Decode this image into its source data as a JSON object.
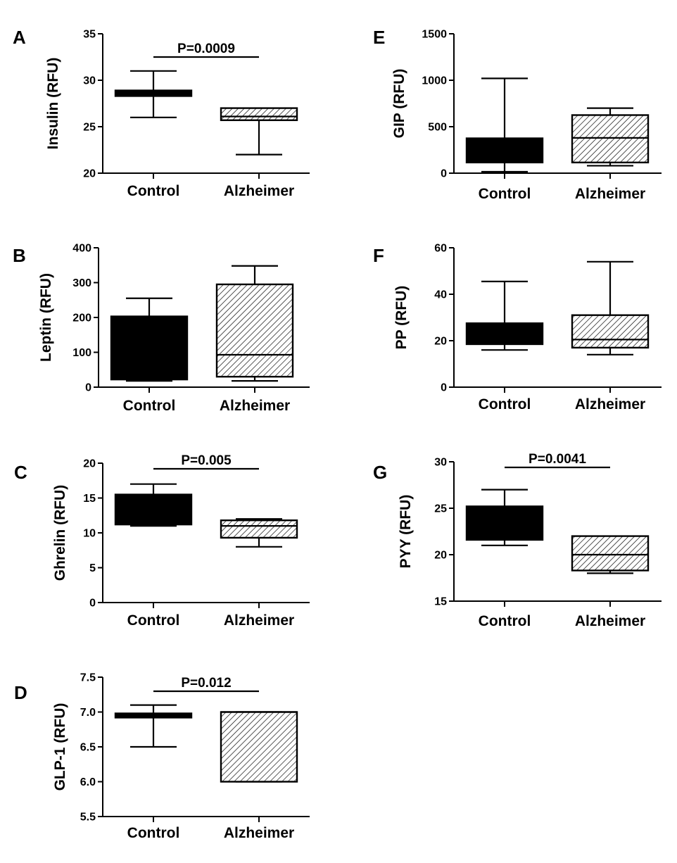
{
  "colors": {
    "ink": "#000000",
    "control_fill": "#000000",
    "alzheimer_fill": "hatched"
  },
  "chart_data": [
    {
      "type": "box",
      "panel": "A",
      "ylabel": "Insulin (RFU)",
      "ylim": [
        20,
        35
      ],
      "yticks": [
        20,
        25,
        30,
        35
      ],
      "ytick_labels": [
        "20",
        "25",
        "30",
        "35"
      ],
      "categories": [
        "Control",
        "Alzheimer"
      ],
      "pvalue": "P=0.0009",
      "boxes": [
        {
          "name": "Control",
          "min": 26,
          "q1": 28.3,
          "median": 28.6,
          "q3": 28.9,
          "max": 31
        },
        {
          "name": "Alzheimer",
          "min": 22,
          "q1": 25.7,
          "median": 26.1,
          "q3": 27,
          "max": 27
        }
      ]
    },
    {
      "type": "box",
      "panel": "B",
      "ylabel": "Leptin (RFU)",
      "ylim": [
        0,
        400
      ],
      "yticks": [
        0,
        100,
        200,
        300,
        400
      ],
      "ytick_labels": [
        "0",
        "100",
        "200",
        "300",
        "400"
      ],
      "categories": [
        "Control",
        "Alzheimer"
      ],
      "pvalue": "",
      "boxes": [
        {
          "name": "Control",
          "min": 18,
          "q1": 22,
          "median": 110,
          "q3": 203,
          "max": 255
        },
        {
          "name": "Alzheimer",
          "min": 18,
          "q1": 30,
          "median": 93,
          "q3": 295,
          "max": 348
        }
      ]
    },
    {
      "type": "box",
      "panel": "C",
      "ylabel": "Ghrelin (RFU)",
      "ylim": [
        0,
        20
      ],
      "yticks": [
        0,
        5,
        10,
        15,
        20
      ],
      "ytick_labels": [
        "0",
        "5",
        "10",
        "15",
        "20"
      ],
      "categories": [
        "Control",
        "Alzheimer"
      ],
      "pvalue": "P=0.005",
      "boxes": [
        {
          "name": "Control",
          "min": 11,
          "q1": 11.2,
          "median": 13,
          "q3": 15.5,
          "max": 17
        },
        {
          "name": "Alzheimer",
          "min": 8,
          "q1": 9.3,
          "median": 11,
          "q3": 11.8,
          "max": 12
        }
      ]
    },
    {
      "type": "box",
      "panel": "D",
      "ylabel": "GLP-1 (RFU)",
      "ylim": [
        5.5,
        7.5
      ],
      "yticks": [
        5.5,
        6.0,
        6.5,
        7.0,
        7.5
      ],
      "ytick_labels": [
        "5.5",
        "6.0",
        "6.5",
        "7.0",
        "7.5"
      ],
      "categories": [
        "Control",
        "Alzheimer"
      ],
      "pvalue": "P=0.012",
      "boxes": [
        {
          "name": "Control",
          "min": 6.5,
          "q1": 6.92,
          "median": 6.95,
          "q3": 6.98,
          "max": 7.1
        },
        {
          "name": "Alzheimer",
          "min": 6.0,
          "q1": 6.0,
          "median": 7.0,
          "q3": 7.0,
          "max": 7.0
        }
      ]
    },
    {
      "type": "box",
      "panel": "E",
      "ylabel": "GIP (RFU)",
      "ylim": [
        0,
        1500
      ],
      "yticks": [
        0,
        500,
        1000,
        1500
      ],
      "ytick_labels": [
        "0",
        "500",
        "1000",
        "1500"
      ],
      "categories": [
        "Control",
        "Alzheimer"
      ],
      "pvalue": "",
      "boxes": [
        {
          "name": "Control",
          "min": 15,
          "q1": 115,
          "median": 250,
          "q3": 375,
          "max": 1020
        },
        {
          "name": "Alzheimer",
          "min": 80,
          "q1": 115,
          "median": 380,
          "q3": 625,
          "max": 700
        }
      ]
    },
    {
      "type": "box",
      "panel": "F",
      "ylabel": "PP (RFU)",
      "ylim": [
        0,
        60
      ],
      "yticks": [
        0,
        20,
        40,
        60
      ],
      "ytick_labels": [
        "0",
        "20",
        "40",
        "60"
      ],
      "categories": [
        "Control",
        "Alzheimer"
      ],
      "pvalue": "",
      "boxes": [
        {
          "name": "Control",
          "min": 16,
          "q1": 18.5,
          "median": 23,
          "q3": 27.5,
          "max": 45.5
        },
        {
          "name": "Alzheimer",
          "min": 14,
          "q1": 17,
          "median": 20.5,
          "q3": 31,
          "max": 54
        }
      ]
    },
    {
      "type": "box",
      "panel": "G",
      "ylabel": "PYY (RFU)",
      "ylim": [
        15,
        30
      ],
      "yticks": [
        15,
        20,
        25,
        30
      ],
      "ytick_labels": [
        "15",
        "20",
        "25",
        "30"
      ],
      "categories": [
        "Control",
        "Alzheimer"
      ],
      "pvalue": "P=0.0041",
      "boxes": [
        {
          "name": "Control",
          "min": 21,
          "q1": 21.6,
          "median": 23.5,
          "q3": 25.2,
          "max": 27
        },
        {
          "name": "Alzheimer",
          "min": 18,
          "q1": 18.3,
          "median": 20,
          "q3": 22,
          "max": 22
        }
      ]
    }
  ]
}
